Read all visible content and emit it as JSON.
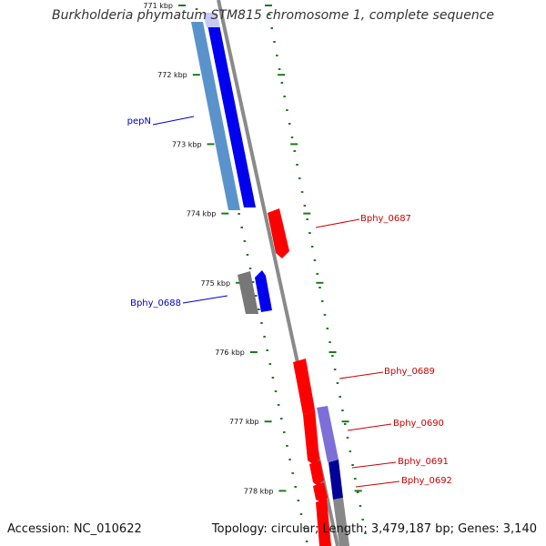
{
  "title": "Burkholderia phymatum STM815 chromosome 1, complete sequence",
  "footer": {
    "accession": "Accession: NC_010622",
    "topology": "Topology: circular; Length: 3,479,187 bp; Genes: 3,140"
  },
  "colors": {
    "backbone": "#888888",
    "tick": "#1a7a1a",
    "forward_gene": "#0000ee",
    "reverse_gene": "#ff0000",
    "forward_label": "#0000cc",
    "reverse_label": "#cc0000"
  },
  "ruler": {
    "unit": "kbp",
    "ticks": [
      {
        "kbp": 771,
        "label": "771 kbp"
      },
      {
        "kbp": 772,
        "label": "772 kbp"
      },
      {
        "kbp": 773,
        "label": "773 kbp"
      },
      {
        "kbp": 774,
        "label": "774 kbp"
      },
      {
        "kbp": 775,
        "label": "775 kbp"
      },
      {
        "kbp": 776,
        "label": "776 kbp"
      },
      {
        "kbp": 777,
        "label": "777 kbp"
      },
      {
        "kbp": 778,
        "label": "778 kbp"
      }
    ]
  },
  "genes": [
    {
      "label": "pepN",
      "strand": "forward"
    },
    {
      "label": "Bphy_0687",
      "strand": "reverse"
    },
    {
      "label": "Bphy_0688",
      "strand": "forward"
    },
    {
      "label": "Bphy_0689",
      "strand": "reverse"
    },
    {
      "label": "Bphy_0690",
      "strand": "reverse"
    },
    {
      "label": "Bphy_0691",
      "strand": "reverse"
    },
    {
      "label": "Bphy_0692",
      "strand": "reverse"
    }
  ]
}
